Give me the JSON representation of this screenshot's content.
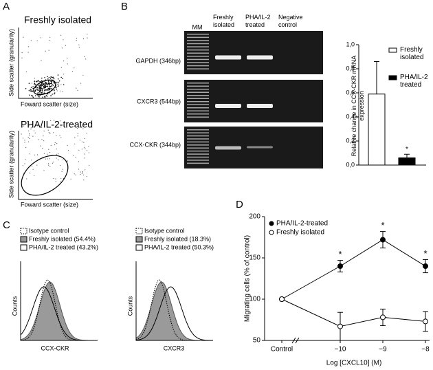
{
  "panel_letters": [
    "A",
    "B",
    "C",
    "D"
  ],
  "panel_a": {
    "plots": [
      {
        "title": "Freshly isolated",
        "xlabel": "Foward scatter (size)",
        "ylabel": "Side scatter (granularity)"
      },
      {
        "title": "PHA/IL-2-treated",
        "xlabel": "Foward scatter (size)",
        "ylabel": "Side scatter (granularity)"
      }
    ]
  },
  "gel": {
    "lanes": [
      "MM",
      "Freshly isolated",
      "PHA/IL-2 treated",
      "Negative control"
    ],
    "rows": [
      "GAPDH (346bp)",
      "CXCR3 (544bp)",
      "CCX-CKR (344bp)"
    ]
  },
  "panel_c": {
    "plots": [
      {
        "legend": [
          "Isotype control",
          "Freshly isolated (54.4%)",
          "PHA/IL-2 treated (43.2%)"
        ],
        "xlabel": "CCX-CKR",
        "ylabel": "Counts"
      },
      {
        "legend": [
          "Isotype control",
          "Freshly isolated (18.3%)",
          "PHA/IL-2 treated (50.3%)"
        ],
        "xlabel": "CXCR3",
        "ylabel": "Counts"
      }
    ]
  },
  "chart_data": [
    {
      "type": "bar",
      "ylabel": "Relative change in CCX-CKR mRNA expression",
      "categories": [
        null
      ],
      "series": [
        {
          "name": "Freshly isolated",
          "color": "#ffffff",
          "values": [
            0.59
          ],
          "errors": [
            0.27
          ]
        },
        {
          "name": "PHA/IL-2 treated",
          "color": "#000000",
          "values": [
            0.06
          ],
          "errors": [
            0.03
          ],
          "annotation": "*"
        }
      ],
      "ylim": [
        0,
        1.0
      ],
      "yticks": [
        {
          "value": 0,
          "label": "0,0"
        },
        {
          "value": 0.2,
          "label": "0,2"
        },
        {
          "value": 0.4,
          "label": "0,4"
        },
        {
          "value": 0.6,
          "label": "0,6"
        },
        {
          "value": 0.8,
          "label": "0,8"
        },
        {
          "value": 1.0,
          "label": "1,0"
        }
      ],
      "legend": "upper right"
    },
    {
      "type": "line",
      "xlabel": "Log [CXCL10] (M)",
      "ylabel": "Migrating cells (% of control)",
      "categories": [
        "Control",
        "−10",
        "−9",
        "−8"
      ],
      "series": [
        {
          "name": "PHA/IL-2-treated",
          "color": "#000000",
          "marker": "filled",
          "values": [
            100,
            140,
            172,
            140
          ],
          "errors": [
            null,
            7,
            10,
            8
          ],
          "annotations": [
            null,
            "*",
            "*",
            "*"
          ]
        },
        {
          "name": "Freshly isolated",
          "color": "#000000",
          "marker": "open",
          "values": [
            100,
            67,
            78,
            73
          ],
          "errors": [
            null,
            17,
            10,
            12
          ]
        }
      ],
      "ylim": [
        50,
        200
      ],
      "yticks": [
        50,
        100,
        150,
        200
      ],
      "legend": "upper left"
    }
  ]
}
